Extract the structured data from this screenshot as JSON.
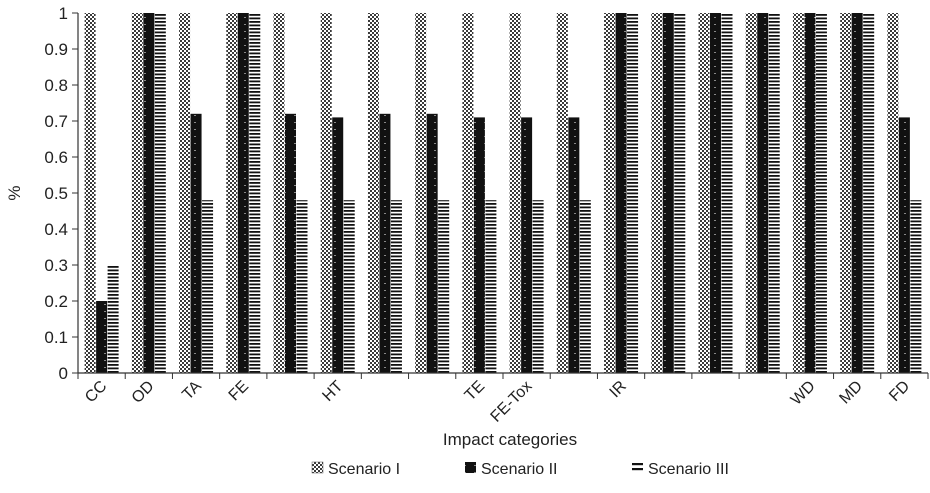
{
  "chart_data": {
    "type": "bar",
    "xlabel": "Impact categories",
    "ylabel": "%",
    "ylim": [
      0,
      1
    ],
    "yticks": [
      "0",
      "0.1",
      "0.2",
      "0.3",
      "0.4",
      "0.5",
      "0.6",
      "0.7",
      "0.8",
      "0.9",
      "1"
    ],
    "grid": false,
    "legend_position": "bottom",
    "categories": [
      "CC",
      "OD",
      "TA",
      "FE",
      "",
      "HT",
      "",
      "",
      "TE",
      "FE-Tox",
      "",
      "IR",
      "",
      "",
      "",
      "WD",
      "MD",
      "FD"
    ],
    "series": [
      {
        "name": "Scenario I",
        "pattern": "checker",
        "values": [
          1,
          1,
          1,
          1,
          1,
          1,
          1,
          1,
          1,
          1,
          1,
          1,
          1,
          1,
          1,
          1,
          1,
          1
        ]
      },
      {
        "name": "Scenario II",
        "pattern": "solid",
        "values": [
          0.2,
          1,
          0.72,
          1,
          0.72,
          0.71,
          0.72,
          0.72,
          0.71,
          0.71,
          0.71,
          1,
          1,
          1,
          1,
          1,
          1,
          0.71
        ]
      },
      {
        "name": "Scenario III",
        "pattern": "hlines",
        "values": [
          0.3,
          1,
          0.48,
          1,
          0.48,
          0.48,
          0.48,
          0.48,
          0.48,
          0.48,
          0.48,
          1,
          1,
          1,
          1,
          1,
          1,
          0.48
        ]
      }
    ]
  }
}
